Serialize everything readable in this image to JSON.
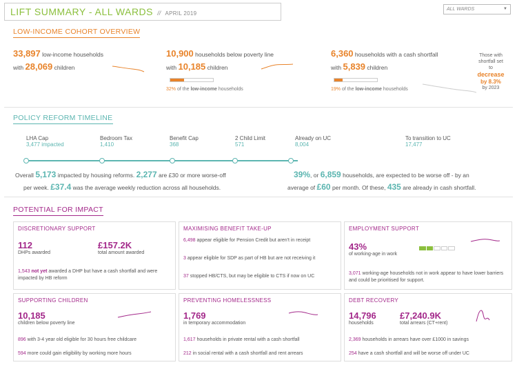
{
  "header": {
    "title": "LIFT SUMMARY - ALL WARDS",
    "separator": "//",
    "date": "APRIL 2019",
    "ward_select": "ALL WARDS"
  },
  "colors": {
    "orange": "#e8832a",
    "teal": "#5bb5b0",
    "purple": "#a3288a",
    "green": "#8bbf3d"
  },
  "overview": {
    "heading": "LOW-INCOME COHORT OVERVIEW",
    "col1": {
      "n1": "33,897",
      "t1": "low-income households",
      "pre2": "with",
      "n2": "28,069",
      "t2": "children"
    },
    "col2": {
      "n1": "10,900",
      "t1": "households below poverty line",
      "pre2": "with",
      "n2": "10,185",
      "t2": "children",
      "pct": "32%",
      "pct_pre": "of the",
      "pct_bold": "low-income",
      "pct_post": "households",
      "fill": 0.32
    },
    "col3": {
      "n1": "6,360",
      "t1": "households with a cash shortfall",
      "pre2": "with",
      "n2": "5,839",
      "t2": "children",
      "pct": "19%",
      "pct_pre": "of the",
      "pct_bold": "low-income",
      "pct_post": "households",
      "fill": 0.19
    },
    "note": {
      "l1": "Those with",
      "l2": "shortfall set",
      "l3": "to",
      "l4": "decrease",
      "l5": "by 8.3%",
      "l6": "by 2023"
    }
  },
  "timeline": {
    "heading": "POLICY REFORM TIMELINE",
    "items": [
      {
        "label": "LHA Cap",
        "value": "3,477 impacted"
      },
      {
        "label": "Bedroom Tax",
        "value": "1,410"
      },
      {
        "label": "Benefit Cap",
        "value": "368"
      },
      {
        "label": "2 Child Limit",
        "value": "571"
      },
      {
        "label": "Already on UC",
        "value": "8,004"
      },
      {
        "label": "To transition to UC",
        "value": "17,477"
      }
    ],
    "left": {
      "a": "Overall",
      "n1": "5,173",
      "b": "impacted by housing reforms.",
      "n2": "2,277",
      "c": "are £30 or more worse-off",
      "d": "per week.",
      "n3": "£37.4",
      "e": "was the average weekly reduction across all households."
    },
    "right": {
      "n1": "39%",
      "a": ", or",
      "n2": "6,859",
      "b": "households, are expected to be worse off - by an",
      "c": "average of",
      "n3": "£60",
      "d": "per month. Of these,",
      "n4": "435",
      "e": "are already in cash shortfall."
    }
  },
  "impact": {
    "heading": "POTENTIAL FOR IMPACT",
    "discretionary": {
      "title": "DISCRETIONARY SUPPORT",
      "n1": "112",
      "l1": "DHPs awarded",
      "n2": "£157.2K",
      "l2": "total amount awarded",
      "t_num": "1,543",
      "t_bold": "not yet",
      "t_rest": "awarded a DHP but have a cash shortfall and were impacted by HB reform"
    },
    "benefit": {
      "title": "MAXIMISING BENEFIT TAKE-UP",
      "a_num": "6,498",
      "a": "appear eligible for Pension Credit but aren't in receipt",
      "b_num": "3",
      "b": "appear eligible for SDP as part of HB but are not receiving it",
      "c_num": "37",
      "c": "stopped HB/CTS, but may be eligible to CTS if now on UC"
    },
    "employment": {
      "title": "EMPLOYMENT SUPPORT",
      "n1": "43%",
      "l1": "of working-age in work",
      "fill": 0.43,
      "t_num": "3,071",
      "t_rest": "working-age households not in work appear to have lower barriers and could be prioritised for support."
    },
    "children": {
      "title": "SUPPORTING CHILDREN",
      "n1": "10,185",
      "l1": "children below poverty line",
      "a_num": "896",
      "a": "with 3-4 year old eligible for 30 hours free childcare",
      "b_num": "594",
      "b": "more could gain eligibility by working more hours"
    },
    "homeless": {
      "title": "PREVENTING HOMELESSNESS",
      "n1": "1,769",
      "l1": "in temporary accommodation",
      "a_num": "1,617",
      "a": "households in private rental with a cash shortfall",
      "b_num": "212",
      "b": "in social rental with a cash shortfall and rent arrears"
    },
    "debt": {
      "title": "DEBT RECOVERY",
      "n1": "14,796",
      "l1": "households",
      "n2": "£7,240.9K",
      "l2": "total arrears (CT+rent)",
      "a_num": "2,369",
      "a": "households in arrears have over £1000 in savings",
      "b_num": "254",
      "b": "have a cash shortfall and will be worse off under UC"
    }
  }
}
